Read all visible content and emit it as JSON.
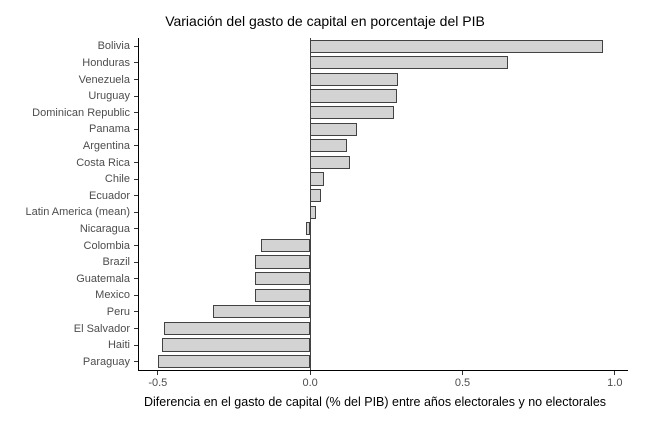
{
  "chart_data": {
    "type": "bar",
    "orientation": "horizontal",
    "title": "Variación del gasto de capital en porcentaje del PIB",
    "xlabel": "Diferencia en el gasto de capital (% del PIB) entre años electorales y no electorales",
    "ylabel": "",
    "categories": [
      "Bolivia",
      "Honduras",
      "Venezuela",
      "Uruguay",
      "Dominican Republic",
      "Panama",
      "Argentina",
      "Costa Rica",
      "Chile",
      "Ecuador",
      "Latin America (mean)",
      "Nicaragua",
      "Colombia",
      "Brazil",
      "Guatemala",
      "Mexico",
      "Peru",
      "El Salvador",
      "Haiti",
      "Paraguay"
    ],
    "values": [
      0.96,
      0.65,
      0.29,
      0.285,
      0.275,
      0.155,
      0.12,
      0.13,
      0.045,
      0.035,
      0.02,
      -0.015,
      -0.16,
      -0.18,
      -0.18,
      -0.18,
      -0.32,
      -0.48,
      -0.485,
      -0.5
    ],
    "xlim": [
      -0.565,
      1.04
    ],
    "xticks": [
      -0.5,
      0.0,
      0.5,
      1.0
    ],
    "xtick_labels": [
      "-0.5",
      "0.0",
      "0.5",
      "1.0"
    ],
    "grid": false,
    "legend": false,
    "zero_line": true,
    "colors": {
      "bar_fill": "#d3d3d3",
      "bar_border": "#424242",
      "axis_line": "#000000",
      "tick_label": "#4d4d4d",
      "title_text": "#000000"
    }
  }
}
